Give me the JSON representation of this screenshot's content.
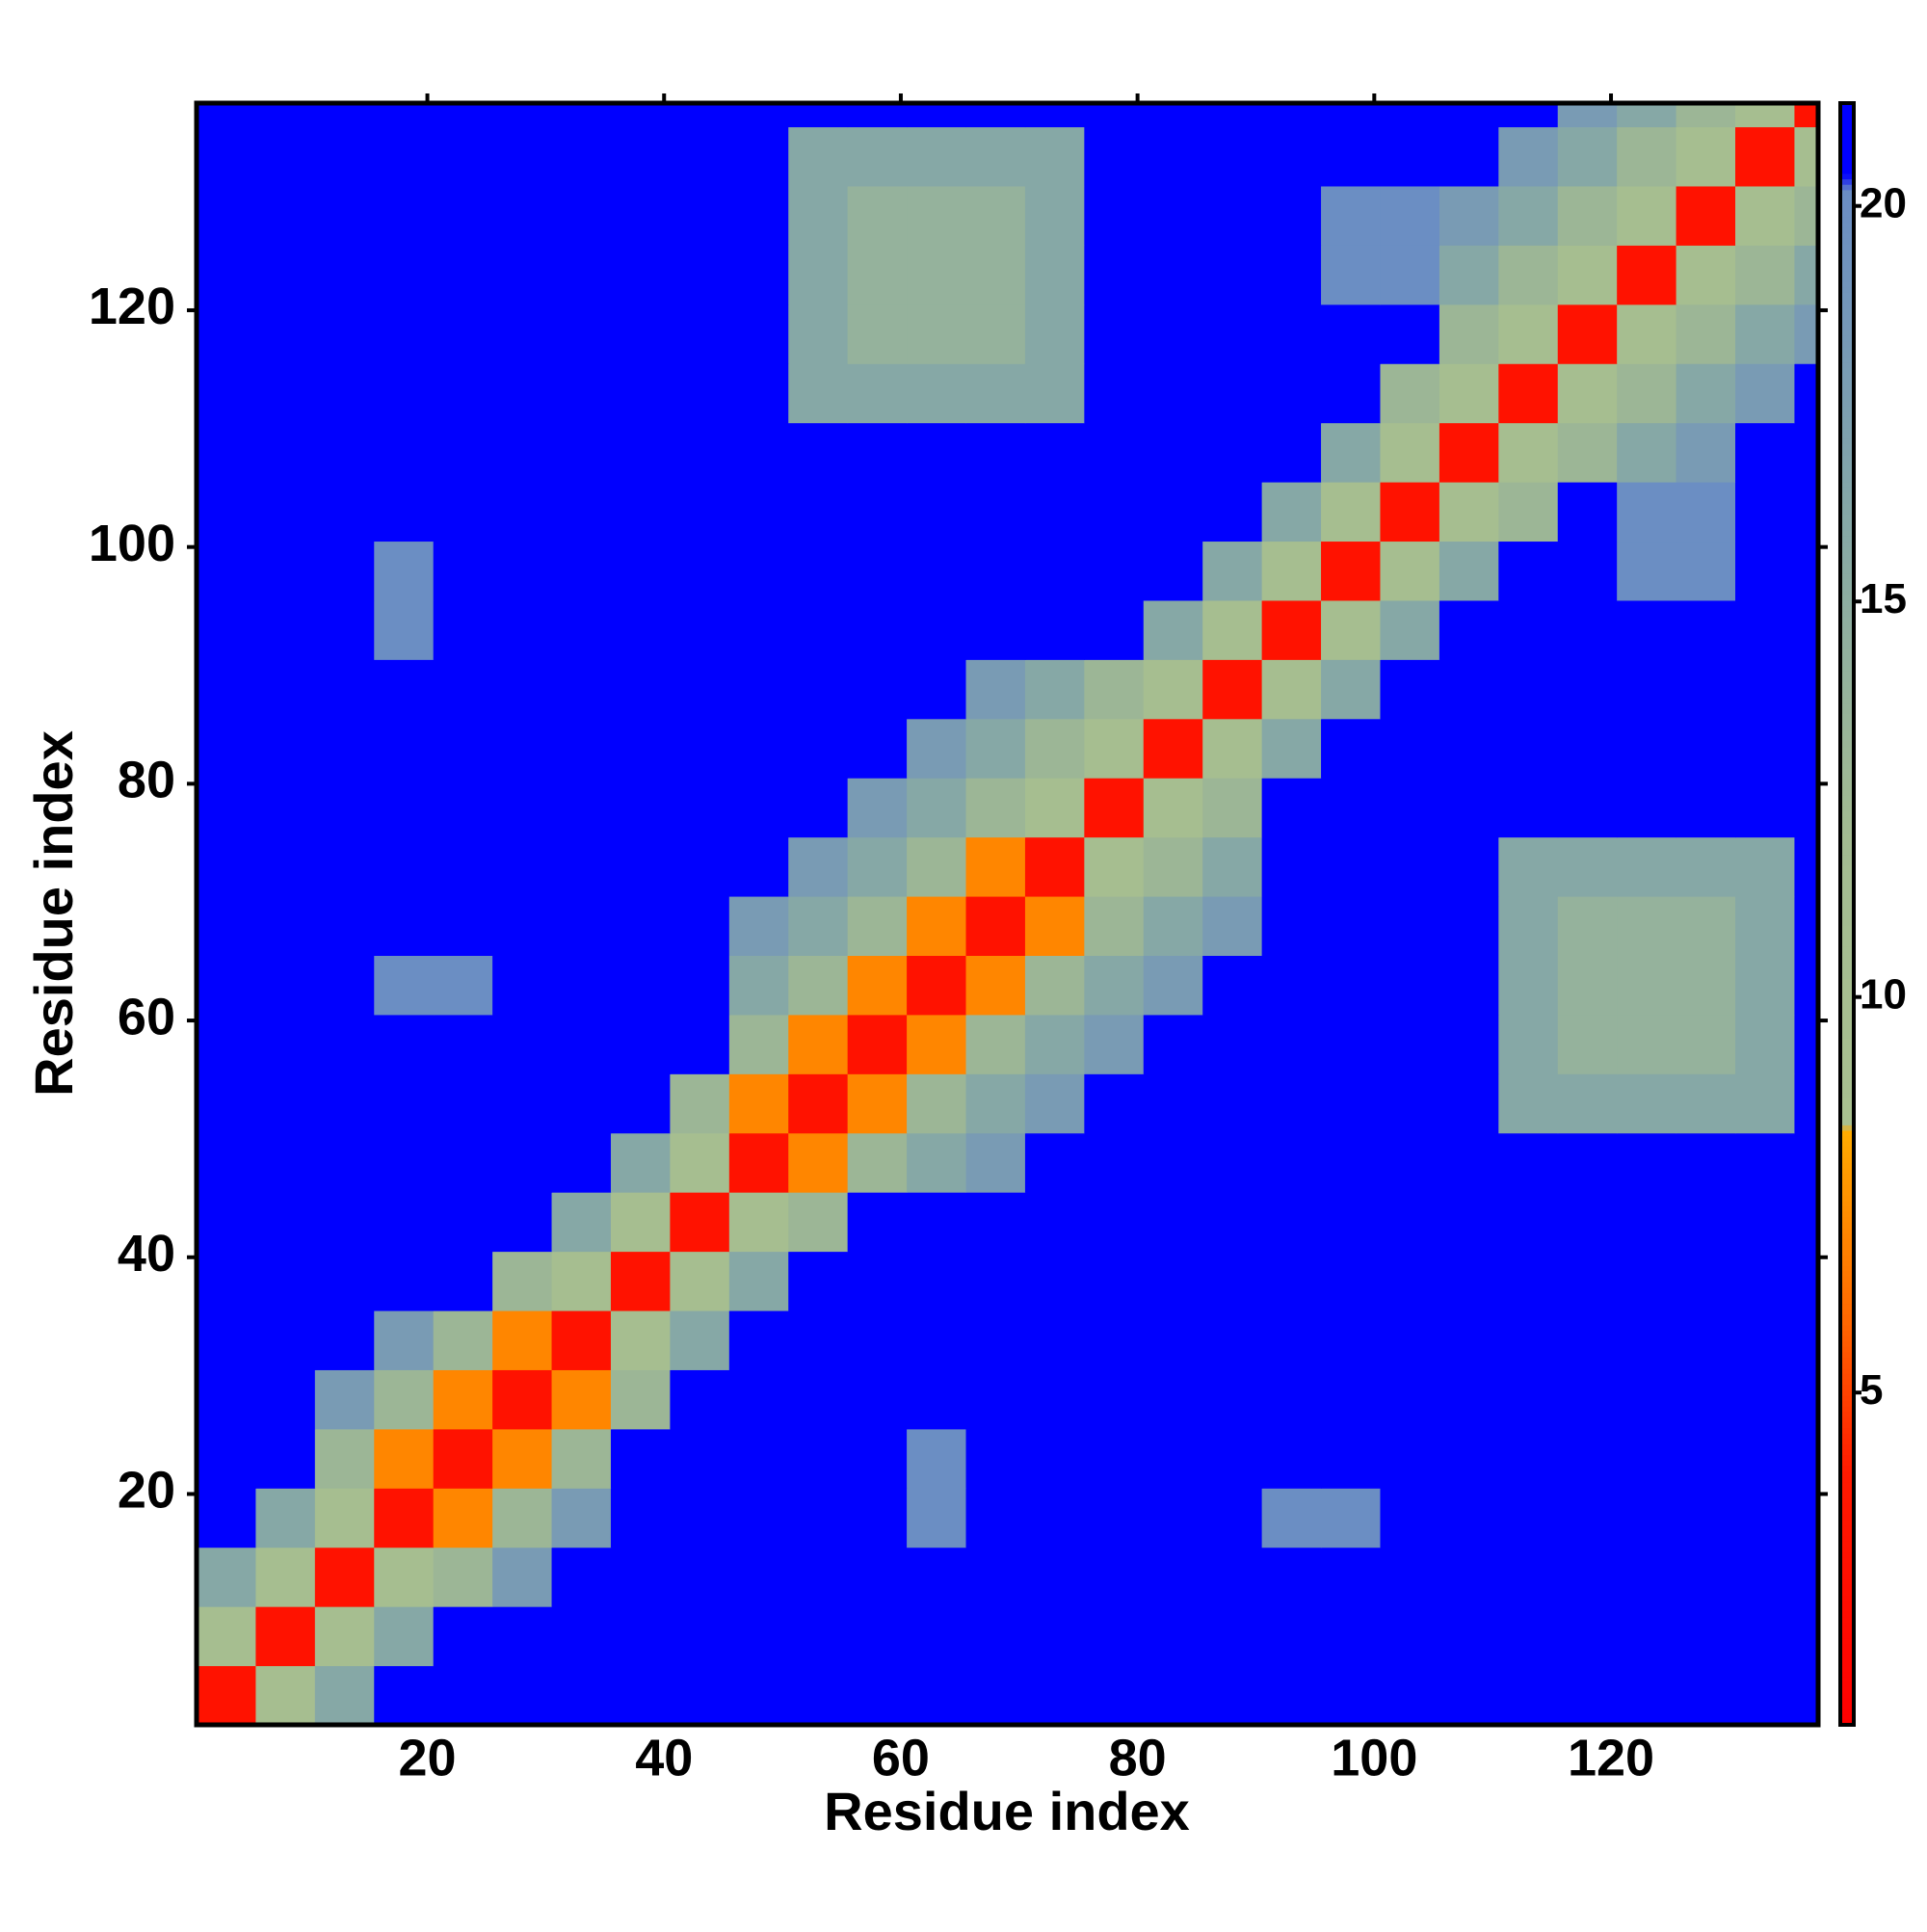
{
  "chart_data": {
    "type": "heatmap",
    "xlabel": "Residue index",
    "ylabel": "Residue index",
    "x": [
      3,
      8,
      13,
      18,
      23,
      28,
      33,
      38,
      43,
      48,
      53,
      58,
      63,
      68,
      73,
      78,
      83,
      88,
      93,
      98,
      103,
      108,
      113,
      118,
      123,
      128,
      133,
      138
    ],
    "y": [
      3,
      8,
      13,
      18,
      23,
      28,
      33,
      38,
      43,
      48,
      53,
      58,
      63,
      68,
      73,
      78,
      83,
      88,
      93,
      98,
      103,
      108,
      113,
      118,
      123,
      128,
      133,
      138
    ],
    "xlim": [
      0.5,
      137.5
    ],
    "ylim": [
      0.5,
      137.5
    ],
    "xticks": [
      20,
      40,
      60,
      80,
      100,
      120
    ],
    "yticks": [
      20,
      40,
      60,
      80,
      100,
      120
    ],
    "zlim": [
      0.8,
      21.3
    ],
    "zticks": [
      5,
      10,
      15,
      20
    ],
    "colorscale": [
      [
        0.8,
        "#ff0000"
      ],
      [
        4,
        "#ff1a00"
      ],
      [
        6,
        "#ff6a00"
      ],
      [
        8.3,
        "#ffaa00"
      ],
      [
        8.4,
        "#a8c090"
      ],
      [
        12,
        "#a3bb91"
      ],
      [
        16,
        "#86a8a6"
      ],
      [
        20.2,
        "#6a8dc4"
      ],
      [
        20.4,
        "#0000ff"
      ],
      [
        21.3,
        "#0000ff"
      ]
    ],
    "z": [
      [
        3,
        10,
        16,
        21,
        21,
        21,
        21,
        21,
        21,
        21,
        21,
        21,
        21,
        21,
        21,
        21,
        21,
        21,
        21,
        21,
        21,
        21,
        21,
        21,
        21,
        21,
        21,
        21
      ],
      [
        10,
        3,
        10,
        16,
        21,
        21,
        21,
        21,
        21,
        21,
        21,
        21,
        21,
        21,
        21,
        21,
        21,
        21,
        21,
        21,
        21,
        21,
        21,
        21,
        21,
        21,
        21,
        21
      ],
      [
        16,
        10,
        3,
        10,
        13,
        18,
        21,
        21,
        21,
        21,
        21,
        21,
        21,
        21,
        21,
        21,
        21,
        21,
        21,
        21,
        21,
        21,
        21,
        21,
        21,
        21,
        21,
        21
      ],
      [
        21,
        16,
        10,
        3,
        7,
        13,
        18,
        21,
        21,
        21,
        21,
        21,
        20,
        21,
        21,
        21,
        21,
        21,
        20,
        20,
        21,
        21,
        21,
        21,
        21,
        21,
        21,
        21
      ],
      [
        21,
        21,
        13,
        7,
        3,
        7,
        13,
        21,
        21,
        21,
        21,
        21,
        20,
        21,
        21,
        21,
        21,
        21,
        21,
        21,
        21,
        21,
        21,
        21,
        21,
        21,
        21,
        21
      ],
      [
        21,
        21,
        18,
        13,
        7,
        3,
        7,
        13,
        21,
        21,
        21,
        21,
        21,
        21,
        21,
        21,
        21,
        21,
        21,
        21,
        21,
        21,
        21,
        21,
        21,
        21,
        21,
        21
      ],
      [
        21,
        21,
        21,
        18,
        13,
        7,
        3,
        10,
        16,
        21,
        21,
        21,
        21,
        21,
        21,
        21,
        21,
        21,
        21,
        21,
        21,
        21,
        21,
        21,
        21,
        21,
        21,
        21
      ],
      [
        21,
        21,
        21,
        21,
        21,
        13,
        10,
        3,
        10,
        16,
        21,
        21,
        21,
        21,
        21,
        21,
        21,
        21,
        21,
        21,
        21,
        21,
        21,
        21,
        21,
        21,
        21,
        21
      ],
      [
        21,
        21,
        21,
        21,
        21,
        21,
        16,
        10,
        3,
        10,
        13,
        21,
        21,
        21,
        21,
        21,
        21,
        21,
        21,
        21,
        21,
        21,
        21,
        21,
        21,
        21,
        21,
        21
      ],
      [
        21,
        21,
        21,
        21,
        21,
        21,
        21,
        16,
        10,
        3,
        7,
        13,
        16,
        18,
        21,
        21,
        21,
        21,
        21,
        21,
        21,
        21,
        21,
        21,
        21,
        21,
        21,
        21
      ],
      [
        21,
        21,
        21,
        21,
        21,
        21,
        21,
        21,
        13,
        7,
        3,
        7,
        13,
        16,
        18,
        21,
        21,
        21,
        21,
        21,
        21,
        21,
        16,
        16,
        16,
        16,
        16,
        21
      ],
      [
        21,
        21,
        21,
        21,
        21,
        21,
        21,
        21,
        21,
        13,
        7,
        3,
        7,
        13,
        16,
        18,
        21,
        21,
        21,
        21,
        21,
        21,
        16,
        14,
        14,
        14,
        16,
        21
      ],
      [
        21,
        21,
        21,
        20,
        20,
        21,
        21,
        21,
        21,
        16,
        13,
        7,
        3,
        7,
        13,
        16,
        18,
        21,
        21,
        21,
        21,
        21,
        16,
        14,
        14,
        14,
        16,
        21
      ],
      [
        21,
        21,
        21,
        21,
        21,
        21,
        21,
        21,
        21,
        18,
        16,
        13,
        7,
        3,
        7,
        13,
        16,
        18,
        21,
        21,
        21,
        21,
        16,
        14,
        14,
        14,
        16,
        21
      ],
      [
        21,
        21,
        21,
        21,
        21,
        21,
        21,
        21,
        21,
        21,
        18,
        16,
        13,
        7,
        3,
        10,
        13,
        16,
        21,
        21,
        21,
        21,
        16,
        16,
        16,
        16,
        16,
        21
      ],
      [
        21,
        21,
        21,
        21,
        21,
        21,
        21,
        21,
        21,
        21,
        21,
        18,
        16,
        13,
        10,
        3,
        10,
        13,
        21,
        21,
        21,
        21,
        21,
        21,
        21,
        21,
        21,
        21
      ],
      [
        21,
        21,
        21,
        21,
        21,
        21,
        21,
        21,
        21,
        21,
        21,
        21,
        18,
        16,
        13,
        10,
        3,
        10,
        16,
        21,
        21,
        21,
        21,
        21,
        21,
        21,
        21,
        21
      ],
      [
        21,
        21,
        21,
        21,
        21,
        21,
        21,
        21,
        21,
        21,
        21,
        21,
        21,
        18,
        16,
        13,
        10,
        3,
        10,
        16,
        21,
        21,
        21,
        21,
        21,
        21,
        21,
        21
      ],
      [
        21,
        21,
        21,
        20,
        21,
        21,
        21,
        21,
        21,
        21,
        21,
        21,
        21,
        21,
        21,
        21,
        16,
        10,
        3,
        10,
        16,
        21,
        21,
        21,
        21,
        21,
        21,
        21
      ],
      [
        21,
        21,
        21,
        20,
        21,
        21,
        21,
        21,
        21,
        21,
        21,
        21,
        21,
        21,
        21,
        21,
        21,
        16,
        10,
        3,
        10,
        16,
        21,
        21,
        20,
        20,
        21,
        21
      ],
      [
        21,
        21,
        21,
        21,
        21,
        21,
        21,
        21,
        21,
        21,
        21,
        21,
        21,
        21,
        21,
        21,
        21,
        21,
        16,
        10,
        3,
        10,
        13,
        21,
        20,
        20,
        21,
        21
      ],
      [
        21,
        21,
        21,
        21,
        21,
        21,
        21,
        21,
        21,
        21,
        21,
        21,
        21,
        21,
        21,
        21,
        21,
        21,
        21,
        16,
        10,
        3,
        10,
        13,
        16,
        18,
        21,
        21
      ],
      [
        21,
        21,
        21,
        21,
        21,
        21,
        21,
        21,
        21,
        21,
        16,
        16,
        16,
        16,
        16,
        21,
        21,
        21,
        21,
        21,
        13,
        10,
        3,
        10,
        13,
        16,
        18,
        21
      ],
      [
        21,
        21,
        21,
        21,
        21,
        21,
        21,
        21,
        21,
        21,
        16,
        14,
        14,
        14,
        16,
        21,
        21,
        21,
        21,
        21,
        21,
        13,
        10,
        3,
        10,
        13,
        16,
        18
      ],
      [
        21,
        21,
        21,
        21,
        21,
        21,
        21,
        21,
        21,
        21,
        16,
        14,
        14,
        14,
        16,
        21,
        21,
        21,
        21,
        20,
        20,
        16,
        13,
        10,
        3,
        10,
        13,
        16
      ],
      [
        21,
        21,
        21,
        21,
        21,
        21,
        21,
        21,
        21,
        21,
        16,
        14,
        14,
        14,
        16,
        21,
        21,
        21,
        21,
        20,
        20,
        18,
        16,
        13,
        10,
        3,
        10,
        13
      ],
      [
        21,
        21,
        21,
        21,
        21,
        21,
        21,
        21,
        21,
        21,
        16,
        16,
        16,
        16,
        16,
        21,
        21,
        21,
        21,
        21,
        21,
        21,
        18,
        16,
        13,
        10,
        3,
        10
      ],
      [
        21,
        21,
        21,
        21,
        21,
        21,
        21,
        21,
        21,
        21,
        21,
        21,
        21,
        21,
        21,
        21,
        21,
        21,
        21,
        21,
        21,
        21,
        21,
        18,
        16,
        13,
        10,
        3
      ]
    ]
  }
}
